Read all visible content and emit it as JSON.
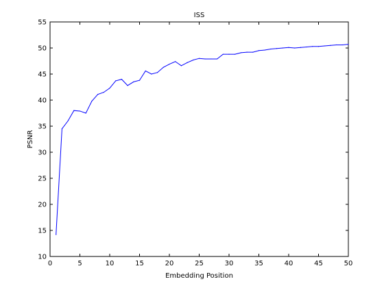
{
  "chart_data": {
    "type": "line",
    "title": "ISS",
    "xlabel": "Embedding Position",
    "ylabel": "PSNR",
    "xlim": [
      0,
      50
    ],
    "ylim": [
      10,
      55
    ],
    "xticks": [
      0,
      5,
      10,
      15,
      20,
      25,
      30,
      35,
      40,
      45,
      50
    ],
    "yticks": [
      10,
      15,
      20,
      25,
      30,
      35,
      40,
      45,
      50,
      55
    ],
    "grid": false,
    "line_color": "#0000ff",
    "series": [
      {
        "x": [
          1,
          2,
          3,
          4,
          5,
          6,
          7,
          8,
          9,
          10,
          11,
          12,
          13,
          14,
          15,
          16,
          17,
          18,
          19,
          20,
          21,
          22,
          23,
          24,
          25,
          26,
          27,
          28,
          29,
          30,
          31,
          32,
          33,
          34,
          35,
          36,
          37,
          38,
          39,
          40,
          41,
          42,
          43,
          44,
          45,
          46,
          47,
          48,
          49,
          50
        ],
        "values": [
          14.2,
          34.5,
          36.0,
          38.0,
          37.9,
          37.5,
          39.8,
          41.1,
          41.5,
          42.3,
          43.7,
          44.0,
          42.8,
          43.5,
          43.8,
          45.6,
          45.0,
          45.3,
          46.3,
          46.9,
          47.4,
          46.6,
          47.2,
          47.7,
          48.0,
          47.9,
          47.9,
          47.9,
          48.8,
          48.8,
          48.8,
          49.1,
          49.2,
          49.2,
          49.5,
          49.6,
          49.8,
          49.9,
          50.0,
          50.1,
          50.0,
          50.1,
          50.2,
          50.3,
          50.3,
          50.4,
          50.5,
          50.6,
          50.6,
          50.7
        ]
      }
    ]
  }
}
